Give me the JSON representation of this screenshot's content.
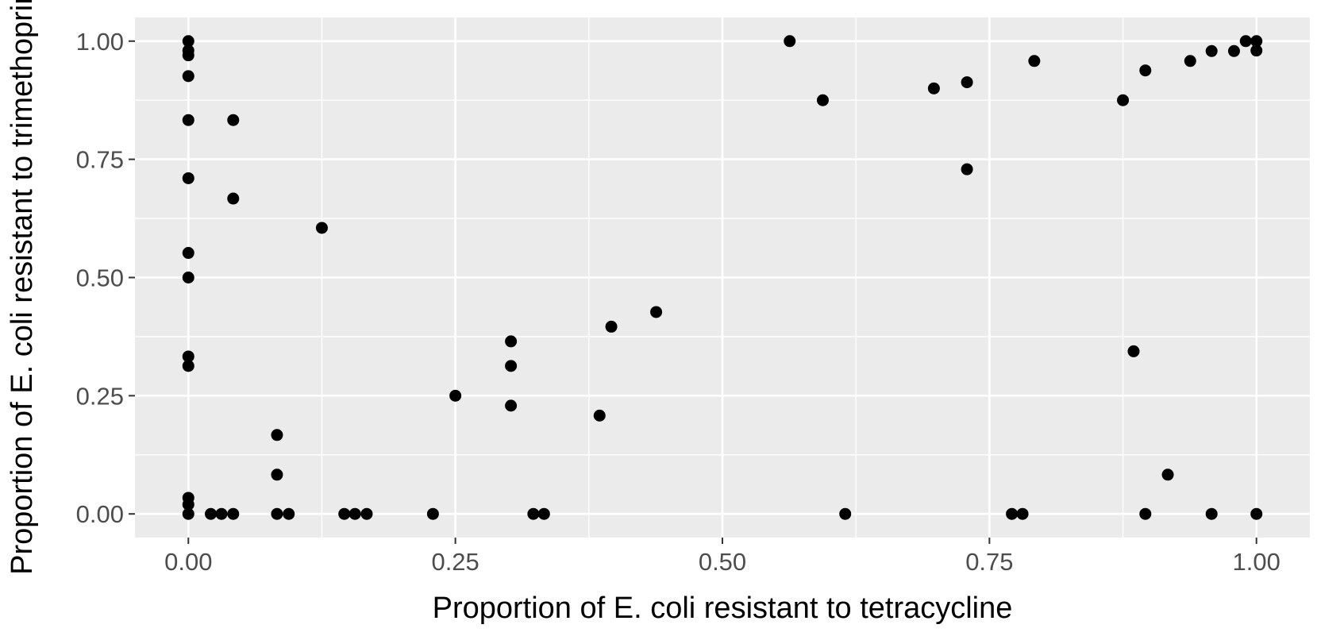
{
  "chart_data": {
    "type": "scatter",
    "title": "",
    "xlabel": "Proportion of E. coli resistant to tetracycline",
    "ylabel": "Proportion of E. coli resistant to trimethoprim",
    "xlim": [
      -0.05,
      1.05
    ],
    "ylim": [
      -0.05,
      1.05
    ],
    "grid": true,
    "colors": {
      "panel": "#ebebeb",
      "grid": "#ffffff",
      "point": "#000000",
      "tick_text": "#4d4d4d",
      "tick_mark": "#333333"
    },
    "x_ticks": [
      {
        "value": 0,
        "label": "0.00"
      },
      {
        "value": 0.25,
        "label": "0.25"
      },
      {
        "value": 0.5,
        "label": "0.50"
      },
      {
        "value": 0.75,
        "label": "0.75"
      },
      {
        "value": 1,
        "label": "1.00"
      }
    ],
    "y_ticks": [
      {
        "value": 0,
        "label": "0.00"
      },
      {
        "value": 0.25,
        "label": "0.25"
      },
      {
        "value": 0.5,
        "label": "0.50"
      },
      {
        "value": 0.75,
        "label": "0.75"
      },
      {
        "value": 1,
        "label": "1.00"
      }
    ],
    "points": [
      [
        0,
        1.0
      ],
      [
        0,
        0.98
      ],
      [
        0,
        0.97
      ],
      [
        0,
        0.926
      ],
      [
        0,
        0.833
      ],
      [
        0,
        0.71
      ],
      [
        0,
        0.552
      ],
      [
        0,
        0.5
      ],
      [
        0,
        0.333
      ],
      [
        0,
        0.313
      ],
      [
        0,
        0.034
      ],
      [
        0,
        0.02
      ],
      [
        0,
        0
      ],
      [
        0.021,
        0
      ],
      [
        0.031,
        0
      ],
      [
        0.042,
        0
      ],
      [
        0.042,
        0.833
      ],
      [
        0.042,
        0.667
      ],
      [
        0.083,
        0.167
      ],
      [
        0.083,
        0.083
      ],
      [
        0.083,
        0
      ],
      [
        0.094,
        0
      ],
      [
        0.125,
        0.605
      ],
      [
        0.146,
        0
      ],
      [
        0.156,
        0
      ],
      [
        0.167,
        0
      ],
      [
        0.229,
        0
      ],
      [
        0.25,
        0.25
      ],
      [
        0.302,
        0.365
      ],
      [
        0.302,
        0.313
      ],
      [
        0.302,
        0.229
      ],
      [
        0.323,
        0
      ],
      [
        0.333,
        0
      ],
      [
        0.385,
        0.208
      ],
      [
        0.396,
        0.396
      ],
      [
        0.438,
        0.427
      ],
      [
        0.563,
        1.0
      ],
      [
        0.594,
        0.875
      ],
      [
        0.615,
        0
      ],
      [
        0.698,
        0.9
      ],
      [
        0.729,
        0.729
      ],
      [
        0.729,
        0.913
      ],
      [
        0.771,
        0
      ],
      [
        0.781,
        0
      ],
      [
        0.792,
        0.958
      ],
      [
        0.875,
        0.875
      ],
      [
        0.885,
        0.344
      ],
      [
        0.896,
        0.938
      ],
      [
        0.896,
        0
      ],
      [
        0.917,
        0.083
      ],
      [
        0.938,
        0.958
      ],
      [
        0.958,
        0.979
      ],
      [
        0.958,
        0
      ],
      [
        0.979,
        0.979
      ],
      [
        0.99,
        1.0
      ],
      [
        1.0,
        1.0
      ],
      [
        1.0,
        0.98
      ],
      [
        1.0,
        0
      ]
    ]
  }
}
